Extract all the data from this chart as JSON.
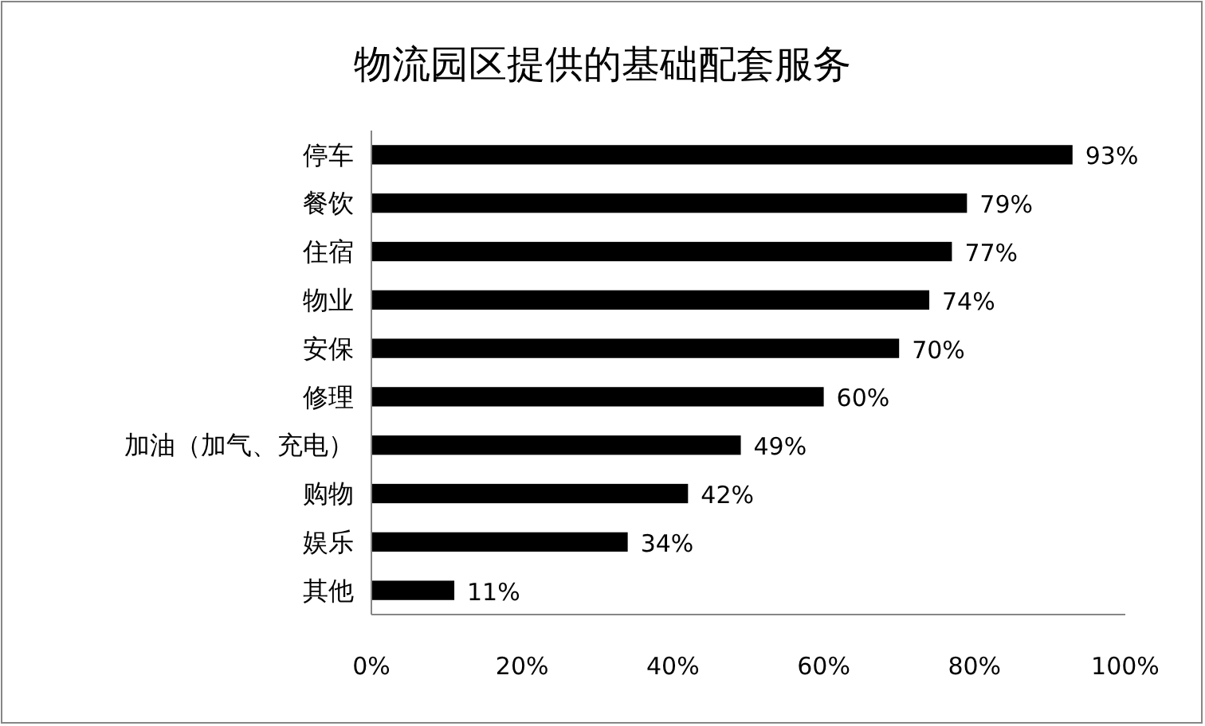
{
  "chart_data": {
    "type": "bar",
    "title": "物流园区提供的基础配套服务",
    "orientation": "horizontal",
    "categories": [
      "停车",
      "餐饮",
      "住宿",
      "物业",
      "安保",
      "修理",
      "加油（加气、充电）",
      "购物",
      "娱乐",
      "其他"
    ],
    "values": [
      93,
      79,
      77,
      74,
      70,
      60,
      49,
      42,
      34,
      11
    ],
    "value_labels": [
      "93%",
      "79%",
      "77%",
      "74%",
      "70%",
      "60%",
      "49%",
      "42%",
      "34%",
      "11%"
    ],
    "color": "#000000",
    "xlim": [
      0,
      100
    ],
    "xticks": [
      {
        "value": 0,
        "label": "0%"
      },
      {
        "value": 20,
        "label": "20%"
      },
      {
        "value": 40,
        "label": "40%"
      },
      {
        "value": 60,
        "label": "60%"
      },
      {
        "value": 80,
        "label": "80%"
      },
      {
        "value": 100,
        "label": "100%"
      }
    ]
  }
}
